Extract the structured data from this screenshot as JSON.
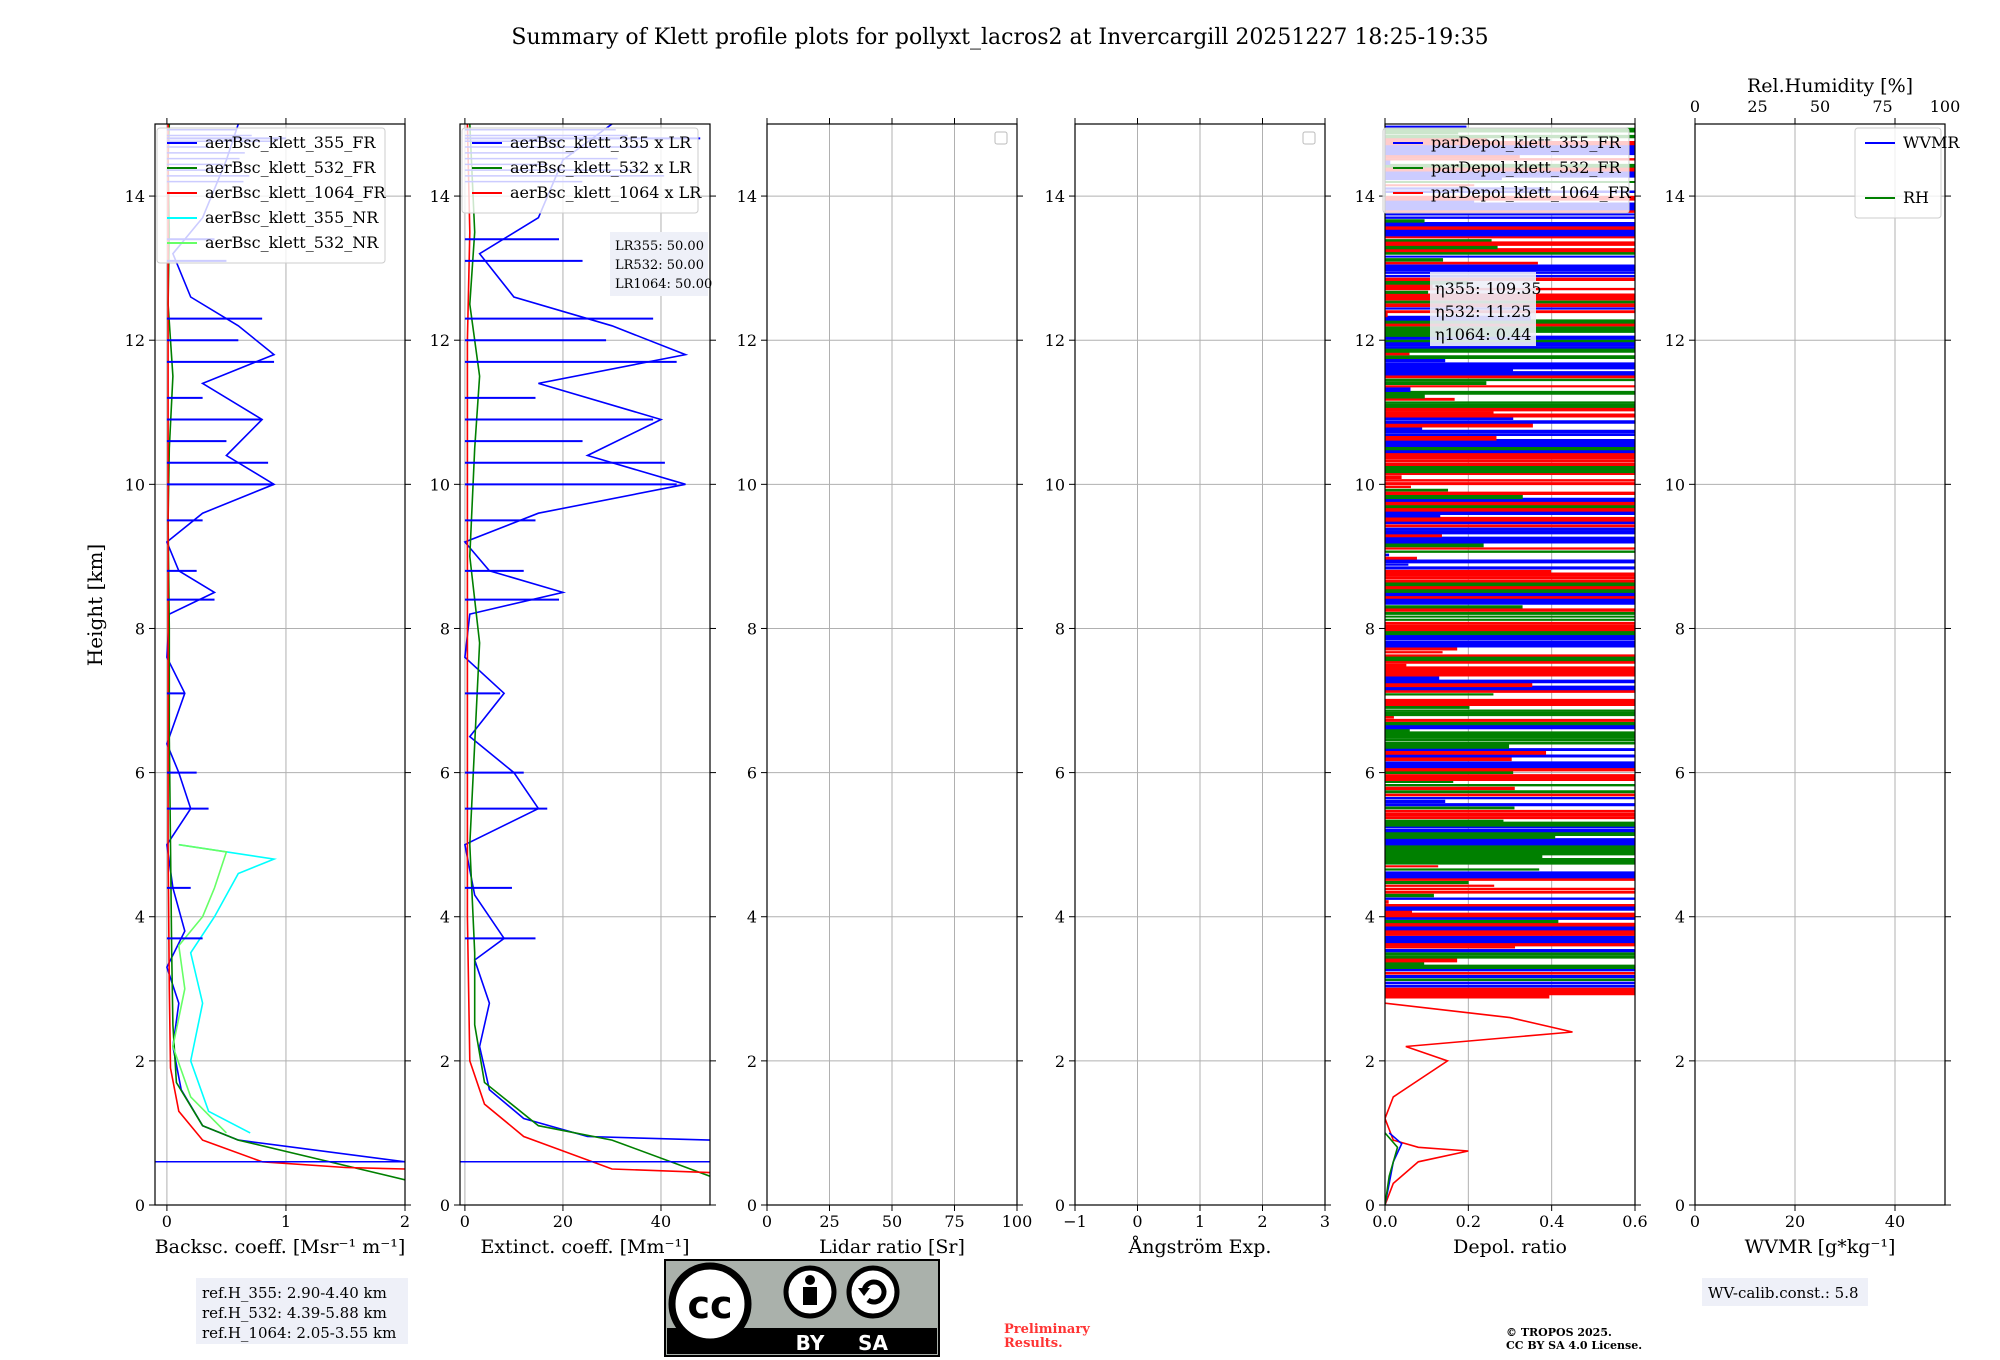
{
  "title": "Summary of Klett profile plots for pollyxt_lacros2 at Invercargill 20251227 18:25-19:35",
  "colors": {
    "blue": "#0000ff",
    "green": "#008000",
    "red": "#ff0000",
    "cyan": "#00ffff",
    "lightgreen": "#66ff66",
    "grid": "#b0b0b0",
    "preliminary": "#ff3333"
  },
  "chart_data": [
    {
      "type": "line",
      "id": "backscatter",
      "xlabel": "Backsc. coeff. [Msr⁻¹ m⁻¹]",
      "ylabel": "Height [km]",
      "xlim": [
        -0.1,
        2.0
      ],
      "ylim": [
        0,
        15
      ],
      "xticks": [
        0,
        1,
        2
      ],
      "xtick_labels": [
        "0",
        "1",
        "2"
      ],
      "yticks": [
        0,
        2,
        4,
        6,
        8,
        10,
        12,
        14
      ],
      "ytick_labels": [
        "0",
        "2",
        "4",
        "6",
        "8",
        "10",
        "12",
        "14"
      ],
      "legend": [
        "aerBsc_klett_355_FR",
        "aerBsc_klett_532_FR",
        "aerBsc_klett_1064_FR",
        "aerBsc_klett_355_NR",
        "aerBsc_klett_532_NR"
      ],
      "legend_colors": [
        "#0000ff",
        "#008000",
        "#ff0000",
        "#00ffff",
        "#66ff66"
      ],
      "series": [
        {
          "name": "aerBsc_klett_355_FR",
          "color": "#0000ff",
          "points": [
            [
              2.0,
              0.6
            ],
            [
              0.6,
              0.9
            ],
            [
              0.3,
              1.1
            ],
            [
              0.12,
              1.6
            ],
            [
              0.05,
              2.2
            ],
            [
              0.1,
              2.8
            ],
            [
              0.0,
              3.3
            ],
            [
              0.15,
              3.8
            ],
            [
              0.05,
              4.4
            ],
            [
              0.0,
              5.0
            ],
            [
              0.2,
              5.5
            ],
            [
              0.1,
              6.0
            ],
            [
              0.0,
              6.4
            ],
            [
              0.15,
              7.1
            ],
            [
              0.0,
              7.6
            ],
            [
              0.02,
              8.2
            ],
            [
              0.4,
              8.5
            ],
            [
              0.1,
              8.8
            ],
            [
              0.0,
              9.2
            ],
            [
              0.3,
              9.6
            ],
            [
              0.9,
              10.0
            ],
            [
              0.5,
              10.4
            ],
            [
              0.8,
              10.9
            ],
            [
              0.3,
              11.4
            ],
            [
              0.9,
              11.8
            ],
            [
              0.6,
              12.2
            ],
            [
              0.2,
              12.6
            ],
            [
              0.05,
              13.2
            ],
            [
              0.3,
              13.7
            ],
            [
              0.5,
              14.5
            ],
            [
              0.6,
              15.0
            ]
          ]
        },
        {
          "name": "aerBsc_klett_532_FR",
          "color": "#008000",
          "points": [
            [
              2.0,
              0.35
            ],
            [
              0.6,
              0.9
            ],
            [
              0.3,
              1.1
            ],
            [
              0.08,
              1.7
            ],
            [
              0.05,
              2.5
            ],
            [
              0.04,
              3.5
            ],
            [
              0.03,
              5.0
            ],
            [
              0.02,
              6.5
            ],
            [
              0.02,
              8.0
            ],
            [
              0.01,
              9.5
            ],
            [
              0.02,
              10.5
            ],
            [
              0.05,
              11.5
            ],
            [
              0.01,
              12.5
            ],
            [
              0.02,
              13.5
            ],
            [
              0.01,
              14.5
            ],
            [
              0.02,
              15.0
            ]
          ]
        },
        {
          "name": "aerBsc_klett_1064_FR",
          "color": "#ff0000",
          "points": [
            [
              2.0,
              0.5
            ],
            [
              1.5,
              0.52
            ],
            [
              0.8,
              0.6
            ],
            [
              0.3,
              0.9
            ],
            [
              0.1,
              1.3
            ],
            [
              0.03,
              1.9
            ],
            [
              0.02,
              3
            ],
            [
              0.01,
              5
            ],
            [
              0.01,
              8
            ],
            [
              0.01,
              11
            ],
            [
              0.01,
              15
            ]
          ]
        },
        {
          "name": "aerBsc_klett_355_NR",
          "color": "#00ffff",
          "points": [
            [
              0.7,
              1.0
            ],
            [
              0.35,
              1.3
            ],
            [
              0.2,
              2.0
            ],
            [
              0.3,
              2.8
            ],
            [
              0.2,
              3.5
            ],
            [
              0.4,
              4.0
            ],
            [
              0.6,
              4.6
            ],
            [
              0.9,
              4.8
            ],
            [
              0.1,
              5.0
            ]
          ]
        },
        {
          "name": "aerBsc_klett_532_NR",
          "color": "#66ff66",
          "points": [
            [
              0.5,
              1.0
            ],
            [
              0.2,
              1.5
            ],
            [
              0.05,
              2.2
            ],
            [
              0.15,
              3.0
            ],
            [
              0.1,
              3.6
            ],
            [
              0.3,
              4.0
            ],
            [
              0.4,
              4.4
            ],
            [
              0.5,
              4.9
            ],
            [
              0.1,
              5.0
            ]
          ]
        }
      ],
      "annotations": [
        "ref.H_355: 2.90-4.40 km",
        "ref.H_532: 4.39-5.88 km",
        "ref.H_1064: 2.05-3.55 km"
      ]
    },
    {
      "type": "line",
      "id": "extinction",
      "xlabel": "Extinct. coeff. [Mm⁻¹]",
      "xlim": [
        -1,
        50
      ],
      "ylim": [
        0,
        15
      ],
      "xticks": [
        0,
        20,
        40
      ],
      "xtick_labels": [
        "0",
        "20",
        "40"
      ],
      "yticks": [
        0,
        2,
        4,
        6,
        8,
        10,
        12,
        14
      ],
      "ytick_labels": [
        "0",
        "2",
        "4",
        "6",
        "8",
        "10",
        "12",
        "14"
      ],
      "legend": [
        "aerBsc_klett_355 x LR",
        "aerBsc_klett_532 x LR",
        "aerBsc_klett_1064 x LR"
      ],
      "legend_colors": [
        "#0000ff",
        "#008000",
        "#ff0000"
      ],
      "series": [
        {
          "name": "aerBsc_klett_355 x LR",
          "color": "#0000ff",
          "points": [
            [
              50,
              0.9
            ],
            [
              25,
              0.95
            ],
            [
              12,
              1.2
            ],
            [
              5,
              1.6
            ],
            [
              3,
              2.2
            ],
            [
              5,
              2.8
            ],
            [
              2,
              3.4
            ],
            [
              8,
              3.7
            ],
            [
              2,
              4.3
            ],
            [
              0,
              5.0
            ],
            [
              15,
              5.5
            ],
            [
              10,
              6.0
            ],
            [
              1,
              6.5
            ],
            [
              8,
              7.1
            ],
            [
              0,
              7.6
            ],
            [
              1,
              8.2
            ],
            [
              20,
              8.5
            ],
            [
              5,
              8.8
            ],
            [
              0,
              9.2
            ],
            [
              15,
              9.6
            ],
            [
              45,
              10.0
            ],
            [
              25,
              10.4
            ],
            [
              40,
              10.9
            ],
            [
              15,
              11.4
            ],
            [
              45,
              11.8
            ],
            [
              30,
              12.2
            ],
            [
              10,
              12.6
            ],
            [
              3,
              13.2
            ],
            [
              15,
              13.7
            ],
            [
              20,
              14.5
            ],
            [
              30,
              15.0
            ]
          ]
        },
        {
          "name": "aerBsc_klett_532 x LR",
          "color": "#008000",
          "points": [
            [
              50,
              0.4
            ],
            [
              30,
              0.9
            ],
            [
              15,
              1.1
            ],
            [
              4,
              1.7
            ],
            [
              2,
              2.5
            ],
            [
              2,
              3.5
            ],
            [
              1,
              5.0
            ],
            [
              3,
              7.8
            ],
            [
              1,
              9.0
            ],
            [
              2,
              10.5
            ],
            [
              3,
              11.5
            ],
            [
              1,
              12.5
            ],
            [
              2,
              13.5
            ],
            [
              1,
              15.0
            ]
          ]
        },
        {
          "name": "aerBsc_klett_1064 x LR",
          "color": "#ff0000",
          "points": [
            [
              50,
              0.45
            ],
            [
              30,
              0.5
            ],
            [
              12,
              0.95
            ],
            [
              4,
              1.4
            ],
            [
              1,
              2.0
            ],
            [
              0.5,
              4
            ],
            [
              0.5,
              8
            ],
            [
              0.5,
              12
            ],
            [
              1,
              13.5
            ],
            [
              0.5,
              15
            ]
          ]
        }
      ],
      "annotations": [
        "LR355: 50.00",
        "LR532: 50.00",
        "LR1064: 50.00"
      ]
    },
    {
      "type": "line",
      "id": "lidar_ratio",
      "xlabel": "Lidar ratio [Sr]",
      "xlim": [
        0,
        100
      ],
      "ylim": [
        0,
        15
      ],
      "xticks": [
        0,
        25,
        50,
        75,
        100
      ],
      "xtick_labels": [
        "0",
        "25",
        "50",
        "75",
        "100"
      ],
      "yticks": [
        0,
        2,
        4,
        6,
        8,
        10,
        12,
        14
      ],
      "ytick_labels": [
        "0",
        "2",
        "4",
        "6",
        "8",
        "10",
        "12",
        "14"
      ],
      "series": []
    },
    {
      "type": "line",
      "id": "angstrom",
      "xlabel": "Ångström Exp.",
      "xlim": [
        -1,
        3
      ],
      "ylim": [
        0,
        15
      ],
      "xticks": [
        -1,
        0,
        1,
        2,
        3
      ],
      "xtick_labels": [
        "−1",
        "0",
        "1",
        "2",
        "3"
      ],
      "yticks": [
        0,
        2,
        4,
        6,
        8,
        10,
        12,
        14
      ],
      "ytick_labels": [
        "0",
        "2",
        "4",
        "6",
        "8",
        "10",
        "12",
        "14"
      ],
      "series": []
    },
    {
      "type": "line",
      "id": "depol",
      "xlabel": "Depol. ratio",
      "xlim": [
        0,
        0.6
      ],
      "ylim": [
        0,
        15
      ],
      "xticks": [
        0,
        0.2,
        0.4,
        0.6
      ],
      "xtick_labels": [
        "0.0",
        "0.2",
        "0.4",
        "0.6"
      ],
      "yticks": [
        0,
        2,
        4,
        6,
        8,
        10,
        12,
        14
      ],
      "ytick_labels": [
        "0",
        "2",
        "4",
        "6",
        "8",
        "10",
        "12",
        "14"
      ],
      "legend": [
        "parDepol_klett_355_FR",
        "parDepol_klett_532_FR",
        "parDepol_klett_1064_FR"
      ],
      "legend_colors": [
        "#0000ff",
        "#008000",
        "#ff0000"
      ],
      "series": [
        {
          "name": "parDepol_klett_1064_FR",
          "color": "#ff0000",
          "points": [
            [
              0.0,
              0.0
            ],
            [
              0.02,
              0.3
            ],
            [
              0.08,
              0.6
            ],
            [
              0.2,
              0.75
            ],
            [
              0.08,
              0.8
            ],
            [
              0.02,
              0.9
            ],
            [
              0.0,
              1.2
            ],
            [
              0.02,
              1.5
            ],
            [
              0.15,
              2.0
            ],
            [
              0.05,
              2.2
            ],
            [
              0.45,
              2.4
            ],
            [
              0.3,
              2.6
            ],
            [
              0.0,
              2.8
            ]
          ]
        },
        {
          "name": "parDepol_klett_355_FR",
          "color": "#0000ff",
          "points": [
            [
              0.0,
              0.0
            ],
            [
              0.01,
              0.3
            ],
            [
              0.02,
              0.6
            ],
            [
              0.04,
              0.85
            ],
            [
              0.01,
              1.0
            ]
          ]
        },
        {
          "name": "parDepol_klett_532_FR",
          "color": "#008000",
          "points": [
            [
              0.0,
              0.0
            ],
            [
              0.01,
              0.4
            ],
            [
              0.03,
              0.8
            ],
            [
              0.0,
              1.0
            ]
          ]
        }
      ],
      "annotations": [
        "η355: 109.35",
        "η532: 11.25",
        "η1064: 0.44"
      ]
    },
    {
      "type": "line",
      "id": "wvmr",
      "xlabel": "WVMR [g*kg⁻¹]",
      "xlabel_top": "Rel.Humidity [%]",
      "xlim": [
        0,
        50
      ],
      "xlim_top": [
        0,
        100
      ],
      "ylim": [
        0,
        15
      ],
      "xticks": [
        0,
        20,
        40
      ],
      "xtick_labels": [
        "0",
        "20",
        "40"
      ],
      "xticks_top": [
        0,
        25,
        50,
        75,
        100
      ],
      "xtick_labels_top": [
        "0",
        "25",
        "50",
        "75",
        "100"
      ],
      "yticks": [
        0,
        2,
        4,
        6,
        8,
        10,
        12,
        14
      ],
      "ytick_labels": [
        "0",
        "2",
        "4",
        "6",
        "8",
        "10",
        "12",
        "14"
      ],
      "legend": [
        "WVMR",
        "RH"
      ],
      "legend_colors": [
        "#0000ff",
        "#008000"
      ],
      "series": [],
      "annotations": [
        "WV-calib.const.: 5.8"
      ]
    }
  ],
  "footer": {
    "license_badge_by": "BY",
    "license_badge_sa": "SA",
    "license_badge_cc": "cc",
    "preliminary_line1": "Preliminary",
    "preliminary_line2": "Results.",
    "copyright_line1": "© TROPOS 2025.",
    "copyright_line2": "CC BY SA 4.0 License."
  }
}
